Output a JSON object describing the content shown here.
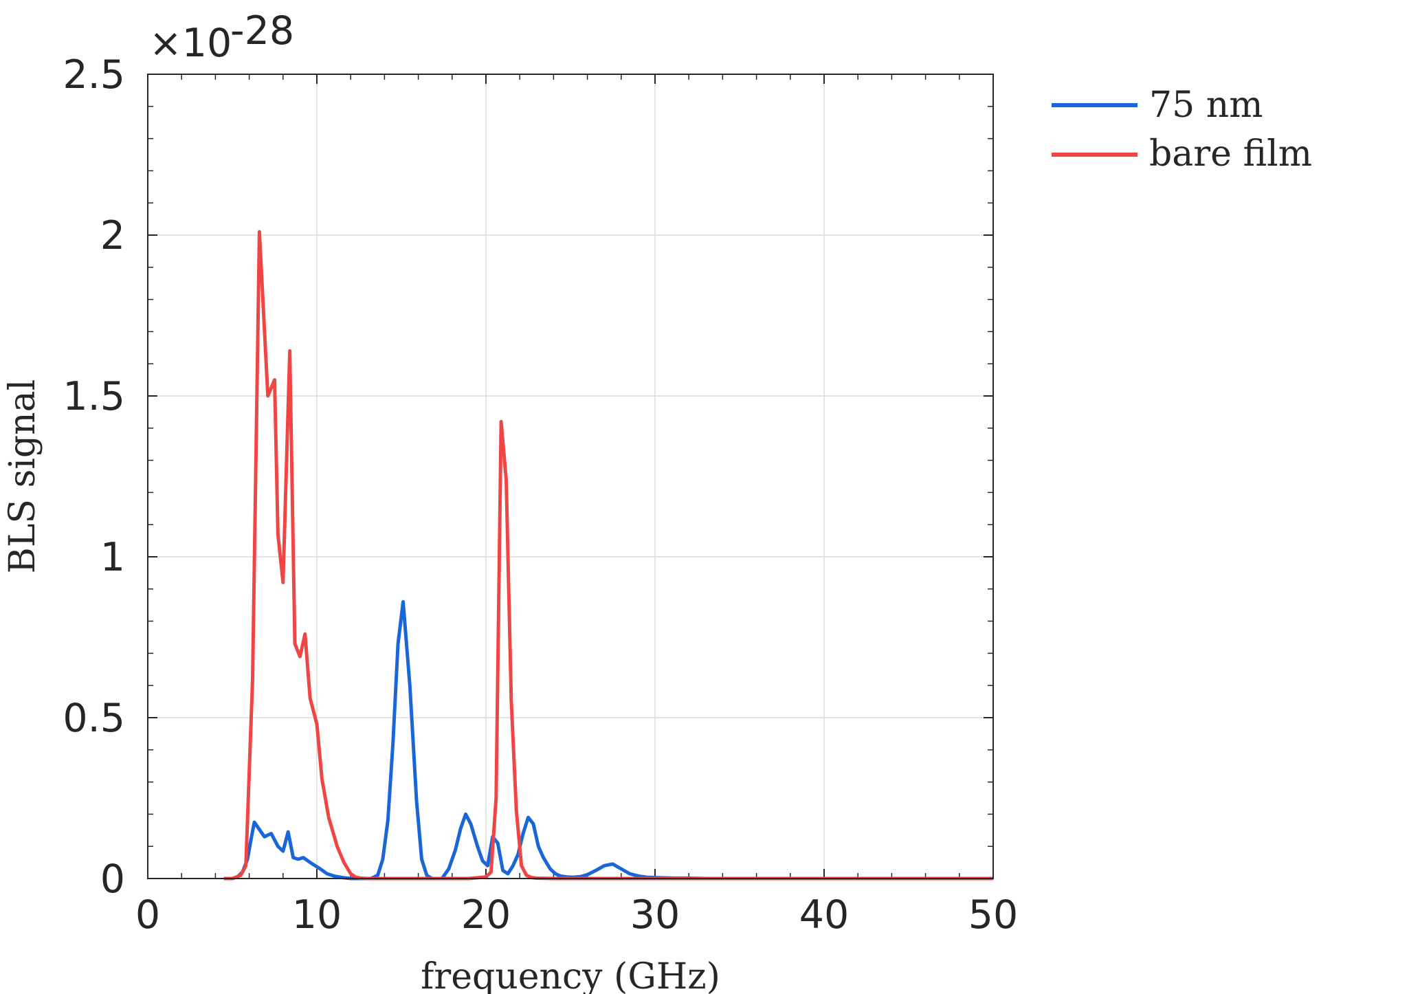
{
  "chart_data": {
    "type": "line",
    "xlabel": "frequency (GHz)",
    "ylabel": "BLS signal",
    "xlim": [
      0,
      50
    ],
    "ylim": [
      0,
      2.5
    ],
    "xticks": [
      "0",
      "10",
      "20",
      "30",
      "40",
      "50"
    ],
    "yticks": [
      "0",
      "0.5",
      "1",
      "1.5",
      "2",
      "2.5"
    ],
    "y_multiplier": {
      "base": "×10",
      "exponent": "-28"
    },
    "grid": true,
    "legend": "outside-top-right",
    "series": [
      {
        "name": "75 nm",
        "color": "#1a66d9",
        "x": [
          4.5,
          5.0,
          5.3,
          5.6,
          5.9,
          6.1,
          6.3,
          6.5,
          6.9,
          7.3,
          7.7,
          8.0,
          8.3,
          8.6,
          8.9,
          9.2,
          9.6,
          9.9,
          10.2,
          10.6,
          11.0,
          11.5,
          12.0,
          12.6,
          13.2,
          13.6,
          13.9,
          14.2,
          14.5,
          14.8,
          15.1,
          15.5,
          15.9,
          16.2,
          16.5,
          16.8,
          17.1,
          17.4,
          17.8,
          18.2,
          18.5,
          18.8,
          19.1,
          19.5,
          19.8,
          20.1,
          20.4,
          20.7,
          21.0,
          21.3,
          21.6,
          21.9,
          22.2,
          22.5,
          22.8,
          23.1,
          23.4,
          23.8,
          24.1,
          24.4,
          24.8,
          25.2,
          25.6,
          26.0,
          26.5,
          27.0,
          27.5,
          28.0,
          28.5,
          29.0,
          29.5,
          30.0,
          30.6,
          31.2,
          32.0,
          33.0,
          35.0,
          40.0,
          45.0,
          50.0
        ],
        "values": [
          0.0,
          0.0,
          0.005,
          0.02,
          0.06,
          0.12,
          0.175,
          0.16,
          0.13,
          0.14,
          0.1,
          0.085,
          0.145,
          0.065,
          0.06,
          0.065,
          0.05,
          0.04,
          0.03,
          0.015,
          0.008,
          0.003,
          0.0,
          0.0,
          0.0,
          0.01,
          0.06,
          0.18,
          0.42,
          0.73,
          0.86,
          0.6,
          0.24,
          0.06,
          0.01,
          0.0,
          0.0,
          0.0,
          0.03,
          0.09,
          0.155,
          0.2,
          0.17,
          0.1,
          0.055,
          0.04,
          0.13,
          0.11,
          0.025,
          0.015,
          0.04,
          0.075,
          0.14,
          0.19,
          0.17,
          0.1,
          0.065,
          0.03,
          0.015,
          0.008,
          0.005,
          0.004,
          0.006,
          0.012,
          0.025,
          0.04,
          0.045,
          0.03,
          0.015,
          0.008,
          0.004,
          0.003,
          0.002,
          0.001,
          0.001,
          0.0,
          0.0,
          0.0,
          0.0,
          0.0
        ]
      },
      {
        "name": "bare film",
        "color": "#f04545",
        "x": [
          4.5,
          5.0,
          5.5,
          5.8,
          6.2,
          6.6,
          7.1,
          7.5,
          7.7,
          8.0,
          8.4,
          8.7,
          9.0,
          9.3,
          9.6,
          10.0,
          10.3,
          10.7,
          11.2,
          11.6,
          12.0,
          12.3,
          12.6,
          13.0,
          14.0,
          15.0,
          17.0,
          19.0,
          20.0,
          20.3,
          20.6,
          20.9,
          21.2,
          21.5,
          21.8,
          22.1,
          22.4,
          22.7,
          23.0,
          24.0,
          26.0,
          30.0,
          35.0,
          40.0,
          45.0,
          50.0
        ],
        "values": [
          0.0,
          0.0,
          0.01,
          0.04,
          0.62,
          2.01,
          1.5,
          1.55,
          1.07,
          0.92,
          1.64,
          0.73,
          0.69,
          0.76,
          0.56,
          0.48,
          0.31,
          0.19,
          0.1,
          0.05,
          0.015,
          0.004,
          0.001,
          0.0,
          0.0,
          0.0,
          0.0,
          0.0,
          0.005,
          0.02,
          0.25,
          1.42,
          1.24,
          0.55,
          0.21,
          0.04,
          0.01,
          0.003,
          0.001,
          0.0,
          0.0,
          0.0,
          0.0,
          0.0,
          0.0,
          0.0
        ]
      }
    ]
  }
}
